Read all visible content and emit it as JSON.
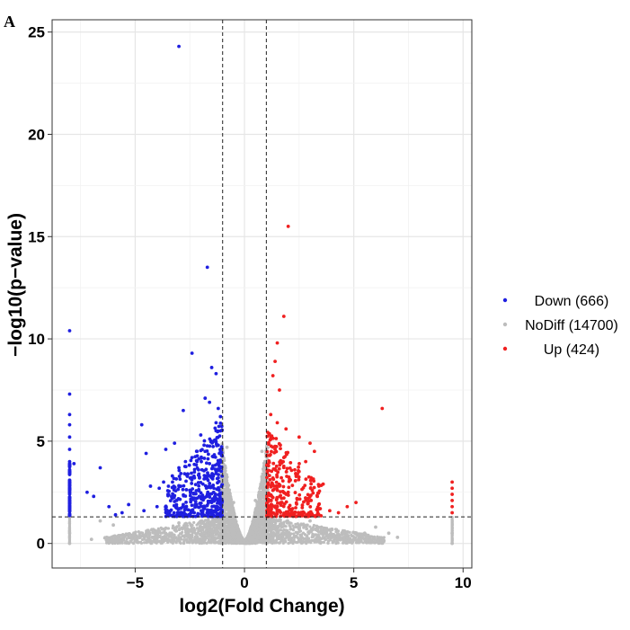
{
  "panel_label": "A",
  "chart_data": {
    "type": "scatter",
    "title": "",
    "xlabel": "log2(Fold Change)",
    "ylabel": "−log10(p−value)",
    "xlim": [
      -8.8,
      10.4
    ],
    "ylim": [
      -1.2,
      25.6
    ],
    "xticks": [
      -5,
      0,
      5,
      10
    ],
    "xtick_labels": [
      "−5",
      "0",
      "5",
      "10"
    ],
    "yticks": [
      0,
      5,
      10,
      15,
      20,
      25
    ],
    "ytick_labels": [
      "0",
      "5",
      "10",
      "15",
      "20",
      "25"
    ],
    "grid": true,
    "thresholds": {
      "vertical": [
        -1,
        1
      ],
      "horizontal": 1.3
    },
    "legend_position": "right",
    "colors": {
      "Down": "#1f1fe0",
      "NoDiff": "#bdbdbd",
      "Up": "#f02020"
    },
    "series": [
      {
        "name": "Down (666)",
        "key": "Down",
        "count": 666,
        "points": [
          [
            -3.0,
            24.3
          ],
          [
            -1.7,
            13.5
          ],
          [
            -8.0,
            10.4
          ],
          [
            -2.4,
            9.3
          ],
          [
            -1.5,
            8.6
          ],
          [
            -1.3,
            8.3
          ],
          [
            -8.0,
            7.3
          ],
          [
            -1.8,
            7.1
          ],
          [
            -1.6,
            6.9
          ],
          [
            -2.8,
            6.5
          ],
          [
            -1.2,
            6.6
          ],
          [
            -1.1,
            6.2
          ],
          [
            -8.0,
            6.3
          ],
          [
            -8.0,
            5.8
          ],
          [
            -4.7,
            5.8
          ],
          [
            -3.2,
            4.9
          ],
          [
            -4.5,
            4.4
          ],
          [
            -3.6,
            4.6
          ],
          [
            -6.6,
            3.7
          ],
          [
            -7.2,
            2.5
          ],
          [
            -6.9,
            2.3
          ],
          [
            -6.2,
            1.8
          ],
          [
            -5.3,
            1.9
          ],
          [
            -5.9,
            1.4
          ],
          [
            -4.3,
            2.8
          ],
          [
            -3.9,
            2.7
          ],
          [
            -3.7,
            3.0
          ],
          [
            -3.3,
            3.3
          ],
          [
            -3.0,
            3.7
          ],
          [
            -2.7,
            4.0
          ],
          [
            -2.4,
            4.2
          ],
          [
            -2.1,
            3.6
          ],
          [
            -1.8,
            4.5
          ],
          [
            -1.6,
            3.9
          ],
          [
            -1.4,
            5.0
          ],
          [
            -1.2,
            4.8
          ],
          [
            -1.1,
            5.5
          ],
          [
            -1.3,
            5.9
          ],
          [
            -2.0,
            5.3
          ],
          [
            -2.5,
            2.6
          ],
          [
            -2.2,
            2.2
          ],
          [
            -1.9,
            2.9
          ],
          [
            -1.7,
            2.4
          ],
          [
            -1.5,
            2.0
          ],
          [
            -1.3,
            1.7
          ],
          [
            -1.1,
            1.5
          ],
          [
            -1.2,
            3.2
          ],
          [
            -1.4,
            2.7
          ],
          [
            -1.6,
            1.6
          ],
          [
            -2.8,
            1.9
          ],
          [
            -3.1,
            2.1
          ],
          [
            -3.5,
            2.4
          ],
          [
            -4.0,
            1.8
          ],
          [
            -4.6,
            1.6
          ],
          [
            -5.6,
            1.5
          ],
          [
            -2.3,
            1.5
          ],
          [
            -2.6,
            3.4
          ],
          [
            -1.9,
            1.8
          ],
          [
            -1.05,
            4.3
          ],
          [
            -1.05,
            2.8
          ],
          [
            -8.0,
            5.2
          ],
          [
            -8.0,
            4.6
          ],
          [
            -8.0,
            4.0
          ],
          [
            -8.0,
            3.5
          ],
          [
            -8.0,
            3.0
          ],
          [
            -8.0,
            2.5
          ],
          [
            -8.0,
            2.0
          ],
          [
            -8.0,
            1.6
          ],
          [
            -7.8,
            3.9
          ]
        ]
      },
      {
        "name": "NoDiff (14700)",
        "key": "NoDiff",
        "count": 14700,
        "points": [
          [
            -0.8,
            4.7
          ],
          [
            0.8,
            4.5
          ],
          [
            -1.0,
            2.5
          ],
          [
            1.0,
            2.4
          ],
          [
            -0.5,
            2.0
          ],
          [
            0.5,
            2.1
          ],
          [
            -2.5,
            0.6
          ],
          [
            2.5,
            0.7
          ],
          [
            -4.0,
            0.6
          ],
          [
            4.0,
            0.7
          ],
          [
            -5.4,
            0.4
          ],
          [
            5.5,
            0.5
          ],
          [
            -6.0,
            0.9
          ],
          [
            6.0,
            0.8
          ],
          [
            -3.0,
            1.0
          ],
          [
            3.0,
            1.1
          ],
          [
            -8.0,
            0.5
          ],
          [
            -8.0,
            0.0
          ],
          [
            9.5,
            0.5
          ],
          [
            9.5,
            0.0
          ],
          [
            -1.5,
            0.4
          ],
          [
            1.5,
            0.3
          ],
          [
            -0.2,
            0.3
          ],
          [
            0.2,
            0.3
          ],
          [
            -7.0,
            0.2
          ],
          [
            7.0,
            0.3
          ],
          [
            -6.6,
            1.1
          ],
          [
            6.6,
            0.5
          ]
        ]
      },
      {
        "name": "Up (424)",
        "key": "Up",
        "count": 424,
        "points": [
          [
            2.0,
            15.5
          ],
          [
            1.8,
            11.1
          ],
          [
            1.5,
            9.8
          ],
          [
            1.4,
            8.9
          ],
          [
            1.3,
            8.2
          ],
          [
            1.6,
            7.5
          ],
          [
            6.3,
            6.6
          ],
          [
            1.2,
            6.3
          ],
          [
            1.5,
            5.9
          ],
          [
            1.9,
            5.6
          ],
          [
            2.5,
            5.2
          ],
          [
            3.0,
            4.9
          ],
          [
            3.2,
            4.5
          ],
          [
            2.8,
            4.0
          ],
          [
            2.3,
            3.6
          ],
          [
            1.8,
            4.2
          ],
          [
            1.4,
            4.6
          ],
          [
            1.2,
            5.1
          ],
          [
            1.1,
            3.8
          ],
          [
            1.3,
            3.2
          ],
          [
            1.6,
            2.8
          ],
          [
            2.0,
            2.5
          ],
          [
            2.4,
            2.2
          ],
          [
            2.9,
            2.0
          ],
          [
            3.4,
            1.9
          ],
          [
            3.9,
            1.6
          ],
          [
            4.3,
            1.5
          ],
          [
            5.1,
            2.0
          ],
          [
            4.7,
            1.8
          ],
          [
            1.1,
            2.1
          ],
          [
            1.2,
            1.6
          ],
          [
            1.4,
            1.8
          ],
          [
            1.7,
            2.2
          ],
          [
            2.2,
            1.7
          ],
          [
            2.6,
            1.5
          ],
          [
            3.1,
            2.6
          ],
          [
            3.6,
            2.9
          ],
          [
            2.1,
            3.1
          ],
          [
            1.9,
            1.4
          ],
          [
            1.15,
            4.3
          ],
          [
            1.05,
            1.4
          ],
          [
            9.5,
            3.0
          ],
          [
            9.5,
            2.7
          ],
          [
            9.5,
            2.4
          ],
          [
            9.5,
            2.1
          ],
          [
            9.5,
            1.8
          ],
          [
            9.5,
            1.5
          ]
        ]
      }
    ]
  }
}
